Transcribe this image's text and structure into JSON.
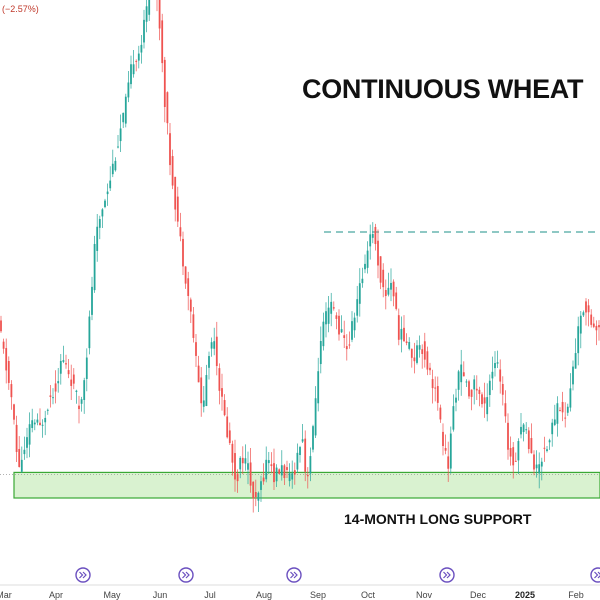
{
  "header": {
    "change_text": "(−2.57%)"
  },
  "chart_data": {
    "type": "candlestick",
    "title": "CONTINUOUS WHEAT",
    "annotation": "14-MONTH LONG SUPPORT",
    "x_ticks": [
      "Mar",
      "Apr",
      "May",
      "Jun",
      "Jul",
      "Aug",
      "Sep",
      "Oct",
      "Nov",
      "Dec",
      "2025",
      "Feb"
    ],
    "bold_ticks": [
      "2025"
    ],
    "y_axis_labels": "not shown",
    "grid": false,
    "path_points": [
      [
        0,
        0.36
      ],
      [
        12,
        0.2
      ],
      [
        18,
        0.05
      ],
      [
        25,
        0.09
      ],
      [
        32,
        0.16
      ],
      [
        40,
        0.14
      ],
      [
        48,
        0.2
      ],
      [
        56,
        0.24
      ],
      [
        62,
        0.3
      ],
      [
        70,
        0.26
      ],
      [
        80,
        0.18
      ],
      [
        88,
        0.34
      ],
      [
        95,
        0.56
      ],
      [
        102,
        0.64
      ],
      [
        110,
        0.71
      ],
      [
        118,
        0.79
      ],
      [
        126,
        0.88
      ],
      [
        133,
        0.98
      ],
      [
        140,
        1.0
      ],
      [
        146,
        1.08
      ],
      [
        150,
        1.18
      ],
      [
        156,
        1.14
      ],
      [
        160,
        1.05
      ],
      [
        165,
        0.88
      ],
      [
        170,
        0.75
      ],
      [
        176,
        0.64
      ],
      [
        182,
        0.54
      ],
      [
        186,
        0.48
      ],
      [
        192,
        0.38
      ],
      [
        198,
        0.25
      ],
      [
        203,
        0.18
      ],
      [
        208,
        0.3
      ],
      [
        214,
        0.36
      ],
      [
        218,
        0.26
      ],
      [
        224,
        0.17
      ],
      [
        230,
        0.1
      ],
      [
        236,
        0.02
      ],
      [
        242,
        0.08
      ],
      [
        248,
        0.05
      ],
      [
        255,
        -0.04
      ],
      [
        262,
        0.02
      ],
      [
        268,
        0.08
      ],
      [
        274,
        0.03
      ],
      [
        282,
        0.05
      ],
      [
        290,
        0.02
      ],
      [
        296,
        0.06
      ],
      [
        302,
        0.14
      ],
      [
        306,
        0.02
      ],
      [
        312,
        0.1
      ],
      [
        318,
        0.28
      ],
      [
        324,
        0.38
      ],
      [
        332,
        0.42
      ],
      [
        340,
        0.36
      ],
      [
        348,
        0.32
      ],
      [
        356,
        0.42
      ],
      [
        362,
        0.48
      ],
      [
        368,
        0.56
      ],
      [
        372,
        0.6
      ],
      [
        378,
        0.52
      ],
      [
        384,
        0.44
      ],
      [
        392,
        0.48
      ],
      [
        398,
        0.36
      ],
      [
        406,
        0.34
      ],
      [
        414,
        0.3
      ],
      [
        420,
        0.34
      ],
      [
        428,
        0.28
      ],
      [
        436,
        0.22
      ],
      [
        442,
        0.12
      ],
      [
        448,
        0.05
      ],
      [
        454,
        0.2
      ],
      [
        460,
        0.28
      ],
      [
        468,
        0.22
      ],
      [
        476,
        0.24
      ],
      [
        484,
        0.18
      ],
      [
        490,
        0.26
      ],
      [
        496,
        0.3
      ],
      [
        502,
        0.22
      ],
      [
        508,
        0.1
      ],
      [
        514,
        0.06
      ],
      [
        522,
        0.16
      ],
      [
        530,
        0.1
      ],
      [
        536,
        0.04
      ],
      [
        542,
        0.08
      ],
      [
        550,
        0.12
      ],
      [
        558,
        0.2
      ],
      [
        566,
        0.16
      ],
      [
        572,
        0.26
      ],
      [
        578,
        0.36
      ],
      [
        584,
        0.42
      ],
      [
        590,
        0.4
      ],
      [
        596,
        0.36
      ],
      [
        600,
        0.38
      ]
    ],
    "support_zone": {
      "low": 0.0,
      "high": 0.04
    },
    "resistance_level": 0.6,
    "colors": {
      "up": "#26a69a",
      "down": "#ef5350",
      "support_fill": "#d9f2d0",
      "support_border": "#3aa835",
      "resistance": "#4aa8a0",
      "event_icon": "#6a4fbf"
    }
  }
}
